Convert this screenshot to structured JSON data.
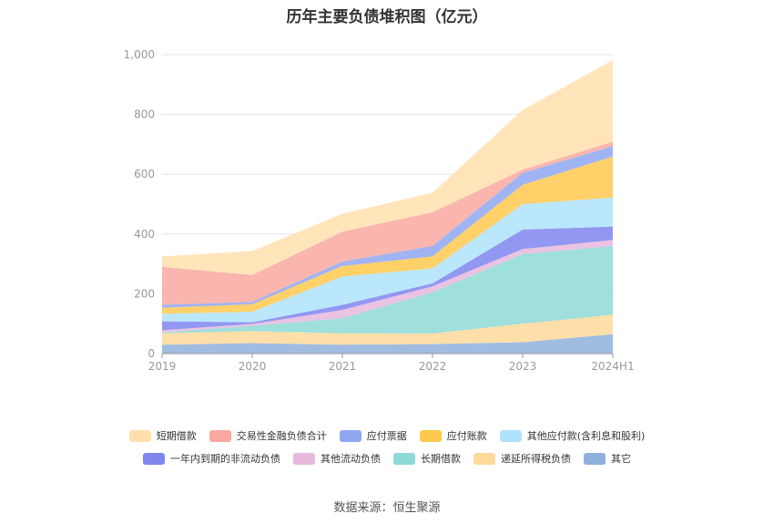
{
  "title": "历年主要负债堆积图（亿元）",
  "source": "数据来源：恒生聚源",
  "chart_data": {
    "type": "area",
    "stacked": true,
    "categories": [
      "2019",
      "2020",
      "2021",
      "2022",
      "2023",
      "2024H1"
    ],
    "ylim": [
      0,
      1000
    ],
    "yticks": [
      0,
      200,
      400,
      600,
      800,
      1000
    ],
    "ytick_labels": [
      "0",
      "200",
      "400",
      "600",
      "800",
      "1,000"
    ],
    "grid": true,
    "legend_position": "bottom",
    "series": [
      {
        "name": "其它",
        "color": "#8fb0dc",
        "values": [
          30,
          35,
          30,
          32,
          38,
          65
        ]
      },
      {
        "name": "递延所得税负债",
        "color": "#ffd99a",
        "values": [
          38,
          40,
          38,
          35,
          62,
          65
        ]
      },
      {
        "name": "长期借款",
        "color": "#8ed9d6",
        "values": [
          3,
          18,
          50,
          138,
          233,
          230
        ]
      },
      {
        "name": "其他流动负债",
        "color": "#e8b8dd",
        "values": [
          7,
          6,
          28,
          20,
          17,
          20
        ]
      },
      {
        "name": "一年内到期的非流动负债",
        "color": "#7f86ee",
        "values": [
          30,
          6,
          17,
          10,
          65,
          45
        ]
      },
      {
        "name": "其他应付款(含利息和股利)",
        "color": "#aee3fb",
        "values": [
          25,
          35,
          95,
          50,
          85,
          97
        ]
      },
      {
        "name": "应付账款",
        "color": "#ffc94d",
        "values": [
          20,
          25,
          35,
          40,
          65,
          137
        ]
      },
      {
        "name": "应付票据",
        "color": "#8fa7f1",
        "values": [
          10,
          8,
          15,
          35,
          40,
          35
        ]
      },
      {
        "name": "交易性金融负债合计",
        "color": "#f8a8a0",
        "values": [
          127,
          90,
          100,
          113,
          10,
          15
        ]
      },
      {
        "name": "短期借款",
        "color": "#ffe0ad",
        "values": [
          35,
          80,
          60,
          65,
          200,
          273
        ]
      }
    ]
  }
}
